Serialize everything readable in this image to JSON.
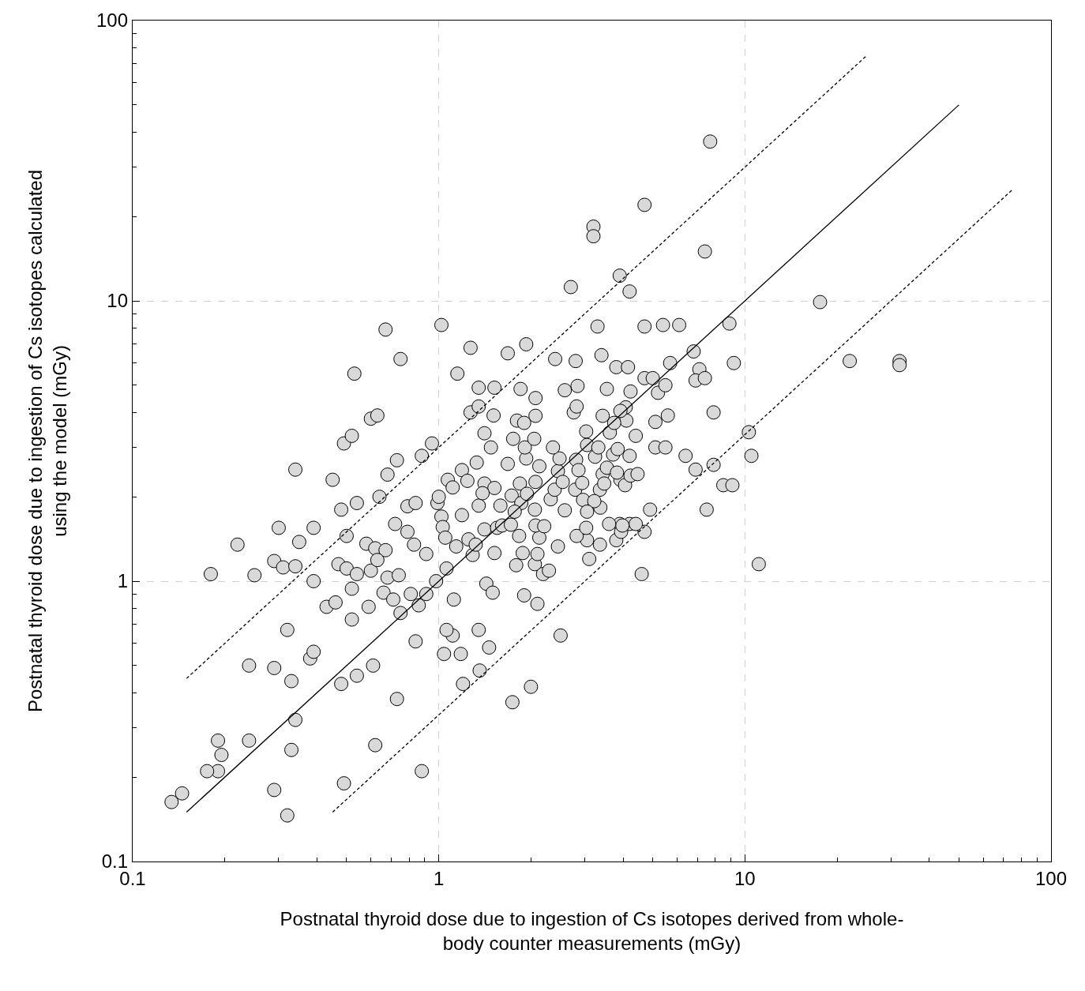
{
  "chart_data": {
    "type": "scatter",
    "xlabel": "Postnatal thyroid dose due to ingestion of Cs isotopes derived from whole-\nbody counter measurements (mGy)",
    "ylabel": "Postnatal thyroid dose due to ingestion of Cs isotopes calculated\nusing the model (mGy)",
    "log": "xy",
    "xlim": [
      0.1,
      100
    ],
    "ylim": [
      0.1,
      100
    ],
    "xticks": [
      0.1,
      1,
      10,
      100
    ],
    "yticks": [
      0.1,
      1,
      10,
      100
    ],
    "grid": true,
    "series": [
      {
        "marker": "circle",
        "color": "#d9d9d9",
        "x": [
          7.7,
          4.7,
          3.2,
          3.2,
          7.4,
          2.7,
          3.9,
          4.2,
          17.6,
          1.02,
          0.67,
          3.3,
          4.7,
          5.4,
          6.1,
          8.9,
          1.27,
          1.68,
          1.93,
          0.75,
          0.53,
          1.15,
          2.4,
          2.8,
          3.4,
          3.8,
          4.15,
          5.7,
          6.8,
          7.1,
          6.9,
          7.4,
          9.2,
          22,
          32,
          32,
          7.9,
          4.7,
          5.0,
          5.2,
          5.5,
          5.1,
          5.6,
          6.4,
          6.9,
          7.9,
          8.5,
          9.1,
          10.3,
          10.5,
          7.5,
          11.1,
          4.6,
          4.7,
          4.9,
          5.1,
          5.5,
          4.4,
          4.2,
          3.8,
          4.2,
          3.9,
          3.6,
          3.05,
          3.1,
          2.5,
          1.74,
          2.0,
          2.1,
          1.9,
          1.36,
          1.2,
          1.35,
          1.11,
          1.04,
          1.06,
          0.84,
          0.88,
          0.73,
          0.62,
          0.49,
          0.48,
          0.54,
          0.61,
          0.32,
          0.29,
          0.33,
          0.34,
          0.33,
          0.29,
          0.24,
          0.24,
          0.19,
          0.195,
          0.19,
          0.175,
          0.145,
          0.134,
          0.32,
          0.38,
          0.39,
          0.18,
          0.25,
          0.22,
          0.29,
          0.31,
          0.34,
          0.35,
          0.3,
          0.34,
          0.39,
          0.39,
          0.45,
          0.49,
          0.52,
          0.48,
          0.54,
          0.5,
          0.47,
          0.5,
          0.52,
          0.43,
          0.46,
          0.52,
          0.59,
          0.54,
          0.6,
          0.58,
          0.62,
          0.67,
          0.63,
          0.64,
          0.68,
          0.6,
          0.63,
          0.73,
          0.72,
          0.66,
          0.68,
          0.71,
          0.75,
          0.74,
          0.79,
          0.79,
          0.83,
          0.84,
          0.81,
          0.88,
          0.91,
          0.91,
          0.95,
          0.86,
          0.98,
          0.99,
          1.0,
          1.02,
          1.03,
          1.05,
          1.06,
          1.07,
          1.11,
          1.12,
          1.14,
          1.19,
          1.19,
          1.24,
          1.27,
          1.35,
          1.35,
          1.41,
          1.52,
          1.51,
          1.48,
          1.33,
          1.41,
          1.52,
          1.25,
          1.29,
          1.32,
          1.35,
          1.39,
          1.41,
          1.43,
          1.5,
          1.52,
          1.55,
          1.59,
          1.61,
          1.68,
          1.73,
          1.75,
          1.8,
          1.85,
          1.9,
          1.93,
          1.91,
          1.84,
          1.86,
          1.94,
          1.77,
          1.72,
          1.83,
          1.88,
          1.79,
          2.06,
          2.1,
          2.13,
          2.07,
          2.06,
          2.07,
          2.13,
          2.05,
          2.07,
          2.07,
          2.19,
          2.29,
          2.21,
          2.32,
          2.39,
          2.45,
          2.48,
          2.36,
          2.45,
          2.58,
          2.54,
          2.58,
          2.76,
          2.84,
          2.81,
          2.86,
          2.82,
          2.79,
          2.94,
          3.03,
          3.05,
          2.96,
          3.24,
          3.36,
          3.43,
          3.32,
          3.43,
          3.54,
          3.62,
          3.71,
          3.84,
          3.92,
          4.06,
          4.08,
          4.1,
          4.23,
          4.23,
          3.54,
          3.92,
          3.74,
          4.46,
          4.4,
          3.82,
          3.47,
          3.37,
          3.22,
          3.05,
          3.36,
          3.94,
          3.98,
          2.82,
          3.03,
          1.18,
          1.46
        ],
        "values": [
          37,
          22,
          18.4,
          17,
          15,
          11.2,
          12.3,
          10.8,
          9.9,
          8.2,
          7.9,
          8.1,
          8.1,
          8.2,
          8.2,
          8.3,
          6.8,
          6.5,
          7.0,
          6.2,
          5.5,
          5.5,
          6.2,
          6.1,
          6.4,
          5.8,
          5.8,
          6.0,
          6.6,
          5.7,
          5.2,
          5.3,
          6.0,
          6.1,
          6.1,
          5.9,
          4.0,
          5.3,
          5.3,
          4.7,
          5.0,
          3.7,
          3.9,
          2.8,
          2.5,
          2.6,
          2.2,
          2.2,
          3.4,
          2.8,
          1.8,
          1.15,
          1.06,
          1.5,
          1.8,
          3.0,
          3.0,
          3.3,
          2.8,
          1.4,
          1.6,
          1.6,
          1.6,
          1.4,
          1.2,
          0.64,
          0.37,
          0.42,
          0.83,
          0.89,
          0.48,
          0.43,
          0.67,
          0.64,
          0.55,
          0.67,
          0.61,
          0.21,
          0.38,
          0.26,
          0.19,
          0.43,
          0.46,
          0.5,
          0.146,
          0.18,
          0.25,
          0.32,
          0.44,
          0.49,
          0.5,
          0.27,
          0.27,
          0.24,
          0.21,
          0.21,
          0.175,
          0.163,
          0.67,
          0.53,
          0.56,
          1.06,
          1.05,
          1.35,
          1.18,
          1.12,
          1.13,
          1.38,
          1.55,
          2.5,
          1.0,
          1.55,
          2.3,
          3.1,
          3.3,
          1.8,
          1.9,
          1.45,
          1.15,
          1.11,
          0.94,
          0.81,
          0.84,
          0.73,
          0.81,
          1.06,
          1.09,
          1.36,
          1.31,
          1.29,
          1.19,
          2.0,
          2.4,
          3.8,
          3.9,
          2.7,
          1.6,
          0.91,
          1.03,
          0.86,
          0.77,
          1.05,
          1.5,
          1.85,
          1.35,
          1.9,
          0.9,
          2.8,
          1.25,
          0.9,
          3.1,
          0.82,
          1.0,
          1.9,
          2.0,
          1.7,
          1.56,
          1.43,
          1.11,
          2.3,
          2.16,
          0.86,
          1.33,
          1.72,
          2.49,
          2.28,
          4.0,
          4.9,
          4.2,
          3.37,
          4.9,
          3.9,
          3.0,
          2.65,
          2.23,
          2.15,
          1.41,
          1.24,
          1.35,
          1.86,
          2.06,
          1.53,
          0.98,
          0.91,
          1.26,
          1.55,
          1.86,
          1.58,
          2.62,
          2.02,
          3.22,
          3.74,
          4.85,
          3.67,
          2.74,
          3.0,
          2.23,
          1.9,
          2.05,
          1.77,
          1.59,
          1.45,
          1.26,
          1.14,
          1.15,
          1.25,
          1.43,
          1.58,
          1.8,
          2.26,
          2.57,
          3.22,
          3.89,
          4.5,
          1.06,
          1.09,
          1.57,
          1.96,
          2.12,
          2.47,
          2.74,
          3.0,
          1.33,
          1.79,
          2.26,
          4.8,
          4.0,
          4.97,
          2.71,
          2.49,
          4.2,
          2.12,
          2.24,
          3.42,
          3.06,
          1.95,
          2.78,
          2.12,
          3.89,
          3.0,
          2.41,
          2.54,
          3.39,
          2.83,
          2.96,
          2.3,
          2.2,
          4.17,
          3.74,
          4.75,
          2.38,
          4.85,
          4.05,
          3.67,
          2.41,
          1.6,
          2.44,
          2.23,
          1.83,
          1.93,
          1.77,
          1.35,
          1.5,
          1.58,
          1.45,
          1.55,
          0.55,
          0.58
        ]
      },
      {
        "type": "line",
        "marker": "none",
        "color": "#000000",
        "line_style": "dashed",
        "x": [
          0.15,
          25
        ],
        "values": [
          0.45,
          75
        ]
      },
      {
        "type": "line",
        "marker": "none",
        "color": "#000000",
        "line_style": "solid",
        "x": [
          0.15,
          50
        ],
        "values": [
          0.15,
          50
        ]
      },
      {
        "type": "line",
        "marker": "none",
        "color": "#000000",
        "line_style": "dashed",
        "x": [
          0.45,
          75
        ],
        "values": [
          0.15,
          25
        ]
      }
    ]
  }
}
